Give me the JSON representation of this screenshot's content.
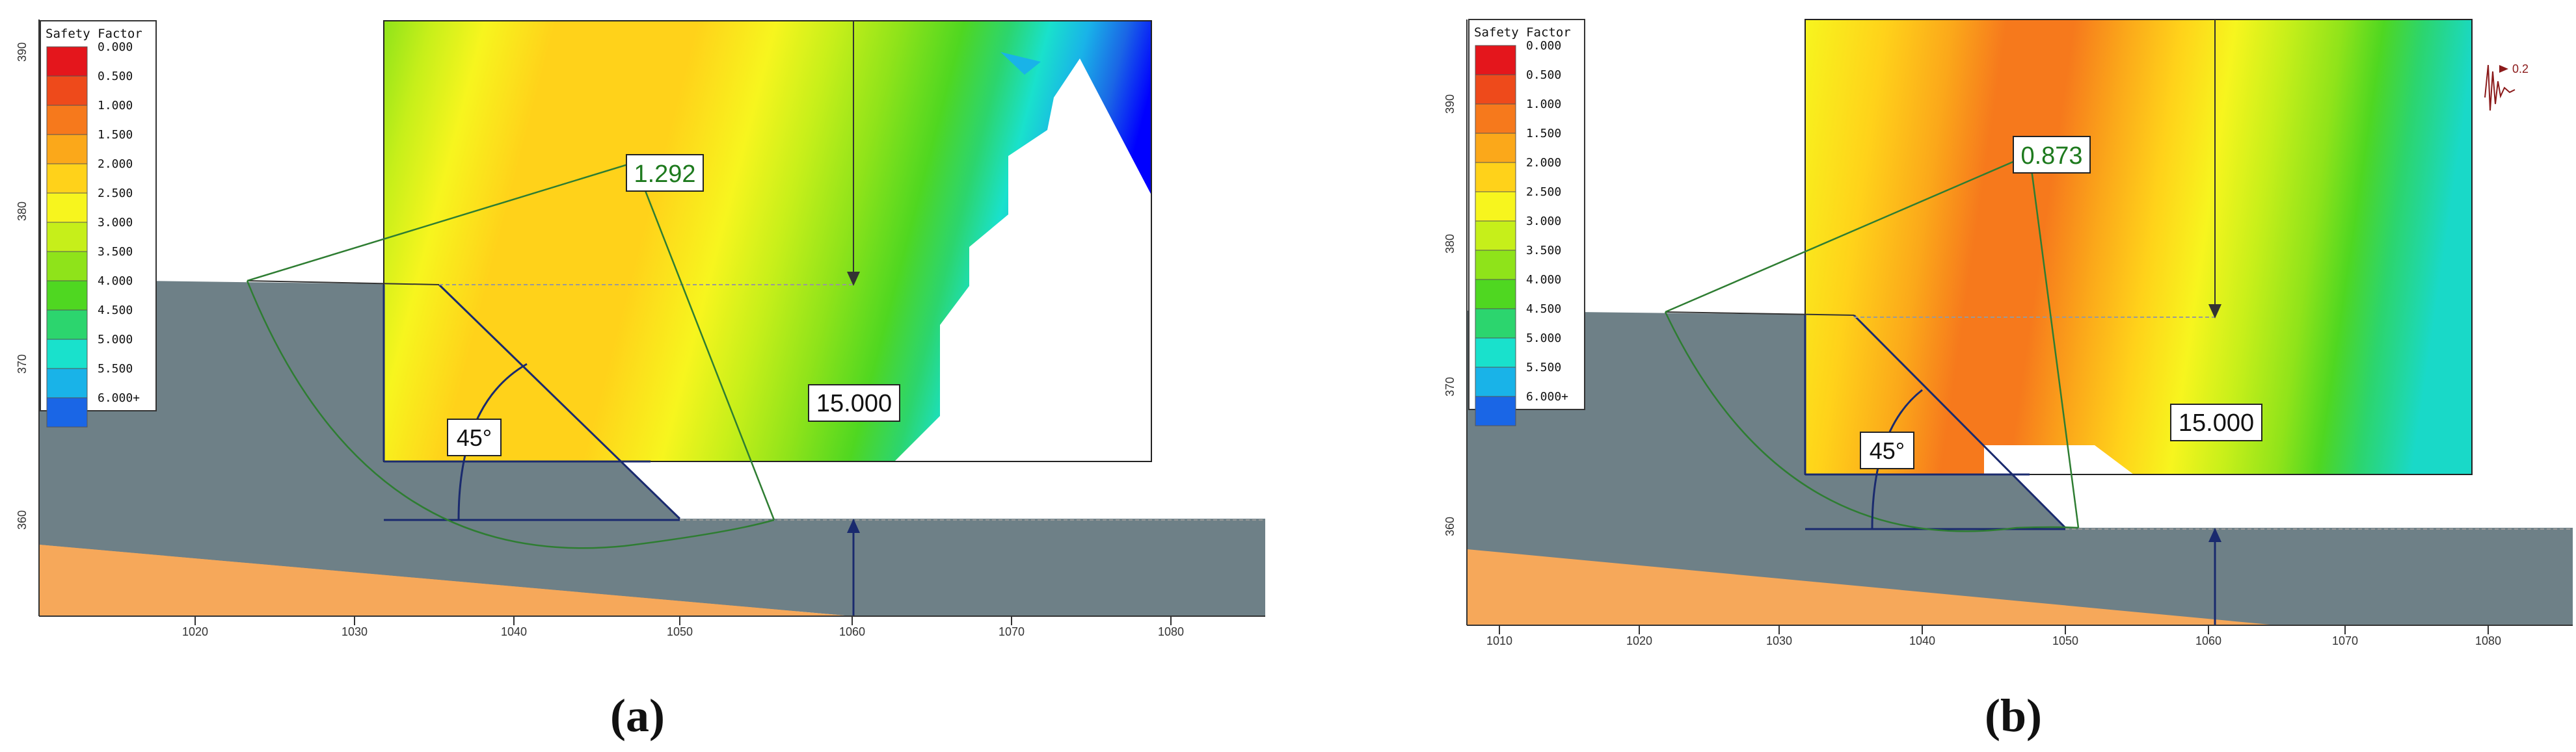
{
  "panels": [
    {
      "id": "a",
      "caption": "(a)",
      "legend": {
        "title": "Safety Factor",
        "entries": [
          {
            "label": "0.000",
            "color": "#e4161c"
          },
          {
            "label": "0.500",
            "color": "#ee4a1b"
          },
          {
            "label": "1.000",
            "color": "#f6791c"
          },
          {
            "label": "1.500",
            "color": "#fba81a"
          },
          {
            "label": "2.000",
            "color": "#ffd21a"
          },
          {
            "label": "2.500",
            "color": "#f7f51e"
          },
          {
            "label": "3.000",
            "color": "#c6ef1a"
          },
          {
            "label": "3.500",
            "color": "#8fe31a"
          },
          {
            "label": "4.000",
            "color": "#4fd721"
          },
          {
            "label": "4.500",
            "color": "#2cd56e"
          },
          {
            "label": "5.000",
            "color": "#19e1cc"
          },
          {
            "label": "5.500",
            "color": "#19b3e8"
          },
          {
            "label": "6.000+",
            "color": "#1a66e6"
          }
        ]
      },
      "min_factor": "1.292",
      "slope_angle": "45°",
      "dimension": "15.000",
      "x_ticks": [
        "1020",
        "1030",
        "1040",
        "1050",
        "1060",
        "1070",
        "1080"
      ],
      "y_ticks": [
        "390",
        "380",
        "370",
        "360"
      ]
    },
    {
      "id": "b",
      "caption": "(b)",
      "legend": {
        "title": "Safety Factor",
        "entries": [
          {
            "label": "0.000",
            "color": "#e4161c"
          },
          {
            "label": "0.500",
            "color": "#ee4a1b"
          },
          {
            "label": "1.000",
            "color": "#f6791c"
          },
          {
            "label": "1.500",
            "color": "#fba81a"
          },
          {
            "label": "2.000",
            "color": "#ffd21a"
          },
          {
            "label": "2.500",
            "color": "#f7f51e"
          },
          {
            "label": "3.000",
            "color": "#c6ef1a"
          },
          {
            "label": "3.500",
            "color": "#8fe31a"
          },
          {
            "label": "4.000",
            "color": "#4fd721"
          },
          {
            "label": "4.500",
            "color": "#2cd56e"
          },
          {
            "label": "5.000",
            "color": "#19e1cc"
          },
          {
            "label": "5.500",
            "color": "#19b3e8"
          },
          {
            "label": "6.000+",
            "color": "#1a66e6"
          }
        ]
      },
      "min_factor": "0.873",
      "slope_angle": "45°",
      "dimension": "15.000",
      "seismic_label": "0.2",
      "x_ticks": [
        "1010",
        "1020",
        "1030",
        "1040",
        "1050",
        "1060",
        "1070",
        "1080"
      ],
      "y_ticks": [
        "390",
        "380",
        "370",
        "360"
      ]
    }
  ],
  "colors": {
    "soil": "#6e8087",
    "lower_layer": "#f6a85a",
    "dimension_line": "#1a2a6e",
    "slip_circle": "#2e7d32",
    "factor_text": "#1e7a1e"
  }
}
